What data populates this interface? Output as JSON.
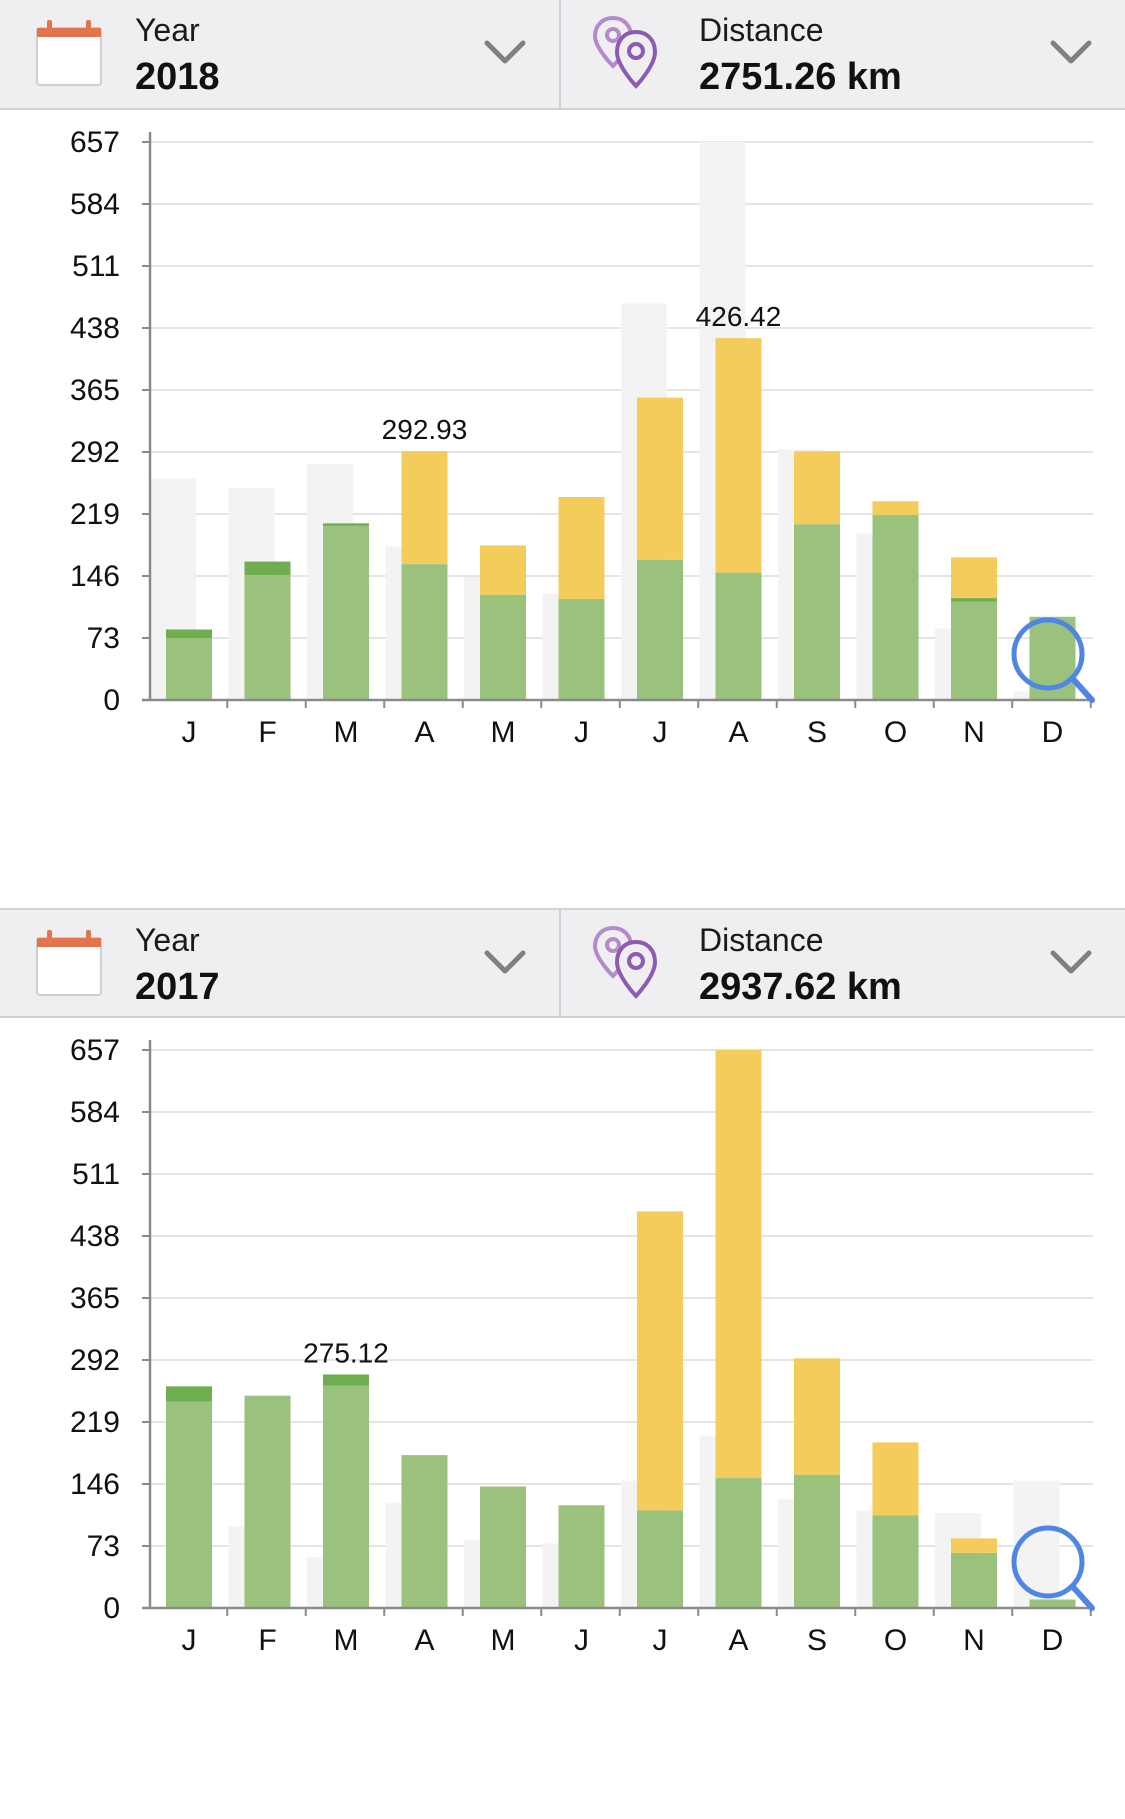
{
  "colors": {
    "yellow": "#f3cc5c",
    "green": "#9ac27c",
    "dark_green": "#6fae4e",
    "teal_green": "#5bb87f",
    "ghost": "#f3f3f3",
    "grid": "#e4e4e4",
    "axis": "#8a8a8a",
    "zoom_icon": "#4f86e3",
    "calendar_icon": "#e2754e",
    "location_icon": "#8e5bb2"
  },
  "panels": [
    {
      "year_label": "Year",
      "year_value": "2018",
      "distance_label": "Distance",
      "distance_value": "2751.26 km",
      "icons": [
        "calendar-icon",
        "location-pins-icon",
        "chevron-down-icon",
        "zoom-magnifier-icon"
      ]
    },
    {
      "year_label": "Year",
      "year_value": "2017",
      "distance_label": "Distance",
      "distance_value": "2937.62 km",
      "icons": [
        "calendar-icon",
        "location-pins-icon",
        "chevron-down-icon",
        "zoom-magnifier-icon"
      ]
    }
  ],
  "chart_data": [
    {
      "type": "bar",
      "stacked": true,
      "year": "2018",
      "categories": [
        "J",
        "F",
        "M",
        "A",
        "M",
        "J",
        "J",
        "A",
        "S",
        "O",
        "N",
        "D"
      ],
      "ylim": [
        0,
        657
      ],
      "yticks": [
        "0",
        "73",
        "146",
        "219",
        "292",
        "365",
        "438",
        "511",
        "584",
        "657"
      ],
      "grid": true,
      "series": [
        {
          "values": [
            73,
            147,
            205,
            160,
            124,
            119,
            165,
            150,
            207,
            218,
            116,
            98
          ],
          "color": "green"
        },
        {
          "values": [
            10,
            16,
            3,
            0,
            0,
            0,
            0,
            0,
            0,
            0,
            4,
            0
          ],
          "color": "dark_green"
        },
        {
          "values": [
            0,
            0,
            0,
            133,
            58,
            120,
            191,
            276,
            86,
            16,
            48,
            0
          ],
          "color": "yellow"
        }
      ],
      "comparison_values": [
        261,
        250,
        278,
        181,
        145,
        125,
        467,
        657,
        295,
        196,
        84,
        10
      ],
      "labels": [
        {
          "category_index": 3,
          "text": "292.93"
        },
        {
          "category_index": 7,
          "text": "426.42"
        }
      ]
    },
    {
      "type": "bar",
      "stacked": true,
      "year": "2017",
      "categories": [
        "J",
        "F",
        "M",
        "A",
        "M",
        "J",
        "J",
        "A",
        "S",
        "O",
        "N",
        "D"
      ],
      "ylim": [
        0,
        657
      ],
      "yticks": [
        "0",
        "73",
        "146",
        "219",
        "292",
        "365",
        "438",
        "511",
        "584",
        "657"
      ],
      "grid": true,
      "series": [
        {
          "values": [
            243,
            250,
            262,
            180,
            143,
            121,
            115,
            153,
            157,
            109,
            65,
            10
          ],
          "color": "green"
        },
        {
          "values": [
            18,
            0,
            13,
            0,
            0,
            0,
            0,
            0,
            0,
            0,
            0,
            0
          ],
          "color": "dark_green"
        },
        {
          "values": [
            0,
            0,
            0,
            0,
            0,
            0,
            352,
            504,
            137,
            86,
            17,
            0
          ],
          "color": "yellow"
        }
      ],
      "comparison_values": [
        0,
        96,
        60,
        124,
        80,
        76,
        150,
        202,
        128,
        115,
        112,
        150
      ],
      "labels": [
        {
          "category_index": 2,
          "text": "275.12"
        }
      ]
    }
  ]
}
